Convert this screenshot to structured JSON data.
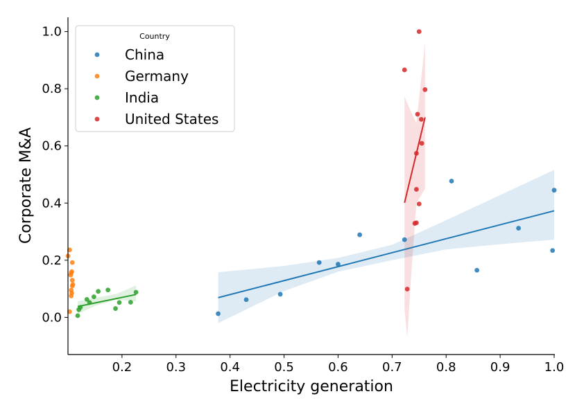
{
  "chart_data": {
    "type": "scatter",
    "xlabel": "Electricity generation",
    "ylabel": "Corporate M&A",
    "xlim": [
      0.1,
      1.0
    ],
    "ylim": [
      -0.13,
      1.05
    ],
    "xticks": [
      "0.2",
      "0.3",
      "0.4",
      "0.5",
      "0.6",
      "0.7",
      "0.8",
      "0.9",
      "1.0"
    ],
    "yticks": [
      "0.0",
      "0.2",
      "0.4",
      "0.6",
      "0.8",
      "1.0"
    ],
    "grid": false,
    "legend": {
      "title": "Country",
      "placement": "top-left"
    },
    "series": [
      {
        "name": "China",
        "color": "#1f77b4",
        "points": [
          [
            0.378,
            0.013
          ],
          [
            0.43,
            0.062
          ],
          [
            0.493,
            0.081
          ],
          [
            0.565,
            0.192
          ],
          [
            0.6,
            0.186
          ],
          [
            0.64,
            0.289
          ],
          [
            0.723,
            0.272
          ],
          [
            0.81,
            0.477
          ],
          [
            0.857,
            0.165
          ],
          [
            0.934,
            0.312
          ],
          [
            0.997,
            0.234
          ],
          [
            1.0,
            0.445
          ]
        ],
        "fit": [
          [
            0.378,
            0.069
          ],
          [
            1.0,
            0.373
          ]
        ],
        "band_upper": [
          [
            0.378,
            0.158
          ],
          [
            0.5,
            0.18
          ],
          [
            0.6,
            0.208
          ],
          [
            0.7,
            0.254
          ],
          [
            0.8,
            0.34
          ],
          [
            0.9,
            0.428
          ],
          [
            1.0,
            0.516
          ]
        ],
        "band_lower": [
          [
            0.378,
            -0.02
          ],
          [
            0.5,
            0.092
          ],
          [
            0.6,
            0.16
          ],
          [
            0.7,
            0.2
          ],
          [
            0.8,
            0.238
          ],
          [
            0.9,
            0.256
          ],
          [
            1.0,
            0.272
          ]
        ]
      },
      {
        "name": "Germany",
        "color": "#ff7f0e",
        "points": [
          [
            0.1,
            0.215
          ],
          [
            0.103,
            0.236
          ],
          [
            0.103,
            0.02
          ],
          [
            0.105,
            0.148
          ],
          [
            0.106,
            0.155
          ],
          [
            0.106,
            0.075
          ],
          [
            0.106,
            0.095
          ],
          [
            0.107,
            0.16
          ],
          [
            0.107,
            0.085
          ],
          [
            0.108,
            0.13
          ],
          [
            0.108,
            0.192
          ],
          [
            0.109,
            0.115
          ],
          [
            0.108,
            0.11
          ]
        ]
      },
      {
        "name": "India",
        "color": "#2ca02c",
        "points": [
          [
            0.118,
            0.006
          ],
          [
            0.12,
            0.027
          ],
          [
            0.123,
            0.035
          ],
          [
            0.135,
            0.063
          ],
          [
            0.14,
            0.052
          ],
          [
            0.148,
            0.072
          ],
          [
            0.156,
            0.091
          ],
          [
            0.174,
            0.096
          ],
          [
            0.188,
            0.031
          ],
          [
            0.195,
            0.052
          ],
          [
            0.216,
            0.053
          ],
          [
            0.226,
            0.088
          ]
        ],
        "fit": [
          [
            0.118,
            0.038
          ],
          [
            0.226,
            0.08
          ]
        ],
        "band_upper": [
          [
            0.118,
            0.056
          ],
          [
            0.15,
            0.068
          ],
          [
            0.19,
            0.082
          ],
          [
            0.226,
            0.112
          ]
        ],
        "band_lower": [
          [
            0.118,
            0.012
          ],
          [
            0.15,
            0.04
          ],
          [
            0.19,
            0.062
          ],
          [
            0.226,
            0.056
          ]
        ]
      },
      {
        "name": "United States",
        "color": "#d62728",
        "points": [
          [
            0.723,
            0.866
          ],
          [
            0.75,
            1.0
          ],
          [
            0.761,
            0.797
          ],
          [
            0.747,
            0.711
          ],
          [
            0.754,
            0.693
          ],
          [
            0.755,
            0.609
          ],
          [
            0.745,
            0.574
          ],
          [
            0.745,
            0.448
          ],
          [
            0.75,
            0.397
          ],
          [
            0.742,
            0.329
          ],
          [
            0.745,
            0.331
          ],
          [
            0.728,
            0.099
          ]
        ],
        "fit": [
          [
            0.723,
            0.401
          ],
          [
            0.761,
            0.7
          ]
        ],
        "band_upper": [
          [
            0.723,
            0.772
          ],
          [
            0.735,
            0.72
          ],
          [
            0.745,
            0.68
          ],
          [
            0.761,
            0.96
          ]
        ],
        "band_lower": [
          [
            0.723,
            0.03
          ],
          [
            0.728,
            -0.07
          ],
          [
            0.735,
            0.14
          ],
          [
            0.745,
            0.4
          ],
          [
            0.761,
            0.45
          ]
        ]
      }
    ]
  }
}
